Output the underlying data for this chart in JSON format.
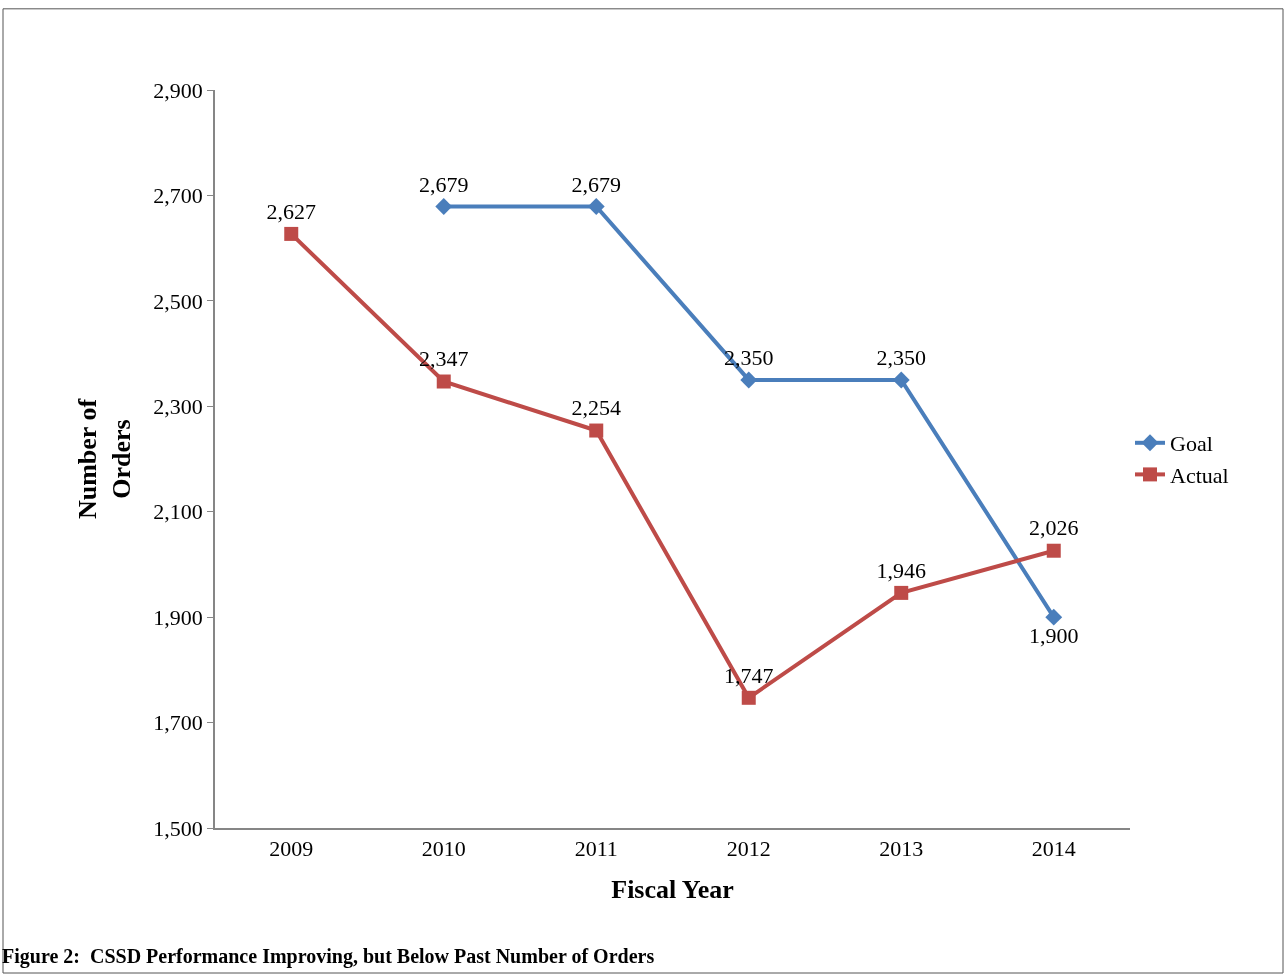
{
  "chart_data": {
    "type": "line",
    "categories": [
      "2009",
      "2010",
      "2011",
      "2012",
      "2013",
      "2014"
    ],
    "series": [
      {
        "name": "Goal",
        "color": "#4a7ebb",
        "marker": "diamond",
        "values": [
          null,
          2679,
          2679,
          2350,
          2350,
          1900
        ],
        "value_labels": [
          null,
          "2,679",
          "2,679",
          "2,350",
          "2,350",
          "1,900"
        ]
      },
      {
        "name": "Actual",
        "color": "#be4b48",
        "marker": "square",
        "values": [
          2627,
          2347,
          2254,
          1747,
          1946,
          2026
        ],
        "value_labels": [
          "2,627",
          "2,347",
          "2,254",
          "1,747",
          "1,946",
          "2,026"
        ]
      }
    ],
    "xlabel": "Fiscal Year",
    "ylabel": "Number of Orders",
    "ylim": [
      1500,
      2900
    ],
    "yticks": [
      {
        "value": 1500,
        "label": "1,500"
      },
      {
        "value": 1700,
        "label": "1,700"
      },
      {
        "value": 1900,
        "label": "1,900"
      },
      {
        "value": 2100,
        "label": "2,100"
      },
      {
        "value": 2300,
        "label": "2,300"
      },
      {
        "value": 2500,
        "label": "2,500"
      },
      {
        "value": 2700,
        "label": "2,700"
      },
      {
        "value": 2900,
        "label": "2,900"
      }
    ],
    "legend": "right",
    "line_style": "solid",
    "annotations": [
      "Figure 2:  CSSD Performance Improving, but Below Past Number of Orders"
    ]
  }
}
